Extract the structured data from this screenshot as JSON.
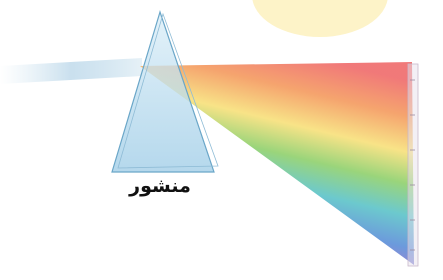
{
  "label": "منشور"
}
